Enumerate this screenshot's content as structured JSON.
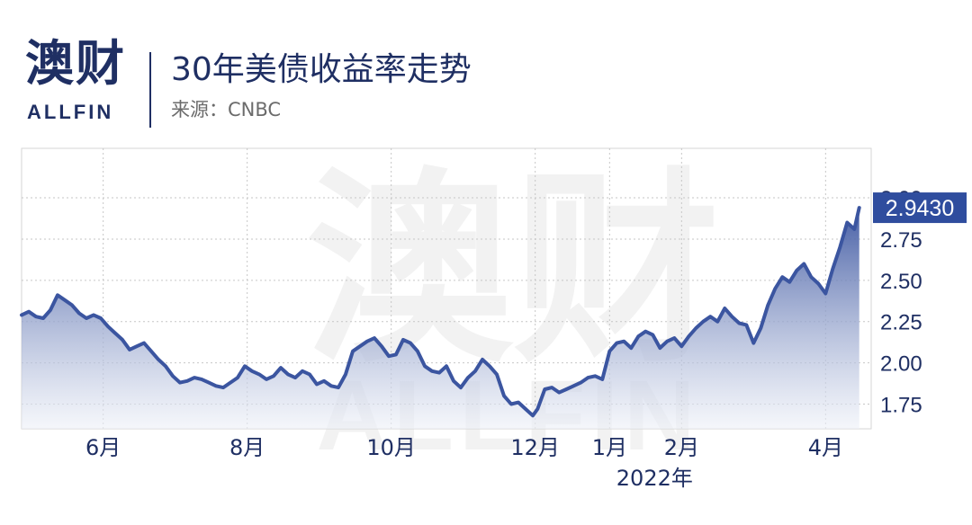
{
  "header": {
    "brand_cn": "澳财",
    "brand_en": "ALLFIN",
    "title": "30年美债收益率走势",
    "source": "来源：CNBC"
  },
  "watermark": {
    "text": "澳财",
    "text_en": "ALLFIN"
  },
  "colors": {
    "line": "#3b55a0",
    "fill_top": "#3b55a0",
    "fill_bottom": "#eef1f8",
    "label_bg": "#2f4d9e",
    "text": "#1f2f63"
  },
  "chart_data": {
    "type": "area",
    "title": "30年美债收益率走势",
    "y_ticks": [
      "1.75",
      "2.00",
      "2.25",
      "2.50",
      "2.75",
      "3.00"
    ],
    "ylim": [
      1.6,
      3.3
    ],
    "x_ticks": [
      {
        "label": "6月",
        "x": 25
      },
      {
        "label": "8月",
        "x": 85
      },
      {
        "label": "10月",
        "x": 145
      },
      {
        "label": "12月",
        "x": 205
      },
      {
        "label": "1月",
        "x": 236
      },
      {
        "label": "2月",
        "x": 266
      },
      {
        "label": "4月",
        "x": 326
      }
    ],
    "x_year_label": "2022年",
    "last_value_label": "2.9430",
    "grid": true,
    "series": [
      {
        "x": [
          -9,
          -6,
          -3,
          0,
          3,
          6,
          9,
          12,
          15,
          18,
          21,
          24,
          27,
          30,
          33,
          36,
          39,
          42,
          45,
          48,
          51,
          54,
          57,
          60,
          63,
          66,
          69,
          72,
          75,
          78,
          81,
          84,
          87,
          90,
          93,
          96,
          99,
          102,
          105,
          108,
          111,
          114,
          117,
          120,
          123,
          126,
          129,
          132,
          135,
          138,
          141,
          144,
          147,
          150,
          153,
          156,
          159,
          162,
          165,
          168,
          171,
          174,
          177,
          180,
          183,
          186,
          189,
          192,
          195,
          198,
          201,
          204,
          206,
          209,
          212,
          215,
          218,
          221,
          224,
          227,
          230,
          233,
          236,
          239,
          242,
          245,
          248,
          251,
          254,
          257,
          260,
          263,
          266,
          269,
          272,
          275,
          278,
          281,
          284,
          287,
          290,
          293,
          296,
          299,
          302,
          305,
          308,
          311,
          314,
          317,
          320,
          323,
          326,
          329,
          332,
          335,
          338,
          340
        ],
        "values": [
          2.29,
          2.31,
          2.28,
          2.27,
          2.32,
          2.41,
          2.38,
          2.35,
          2.3,
          2.27,
          2.29,
          2.27,
          2.22,
          2.18,
          2.14,
          2.08,
          2.1,
          2.12,
          2.07,
          2.02,
          1.98,
          1.92,
          1.88,
          1.89,
          1.91,
          1.9,
          1.88,
          1.86,
          1.85,
          1.88,
          1.91,
          1.98,
          1.95,
          1.93,
          1.9,
          1.92,
          1.97,
          1.93,
          1.91,
          1.95,
          1.93,
          1.87,
          1.89,
          1.86,
          1.85,
          1.93,
          2.07,
          2.1,
          2.13,
          2.15,
          2.1,
          2.04,
          2.05,
          2.14,
          2.12,
          2.07,
          1.98,
          1.95,
          1.94,
          1.98,
          1.89,
          1.85,
          1.91,
          1.95,
          2.02,
          1.98,
          1.93,
          1.8,
          1.75,
          1.76,
          1.72,
          1.68,
          1.72,
          1.84,
          1.85,
          1.82,
          1.84,
          1.86,
          1.88,
          1.91,
          1.92,
          1.9,
          2.07,
          2.12,
          2.13,
          2.09,
          2.16,
          2.19,
          2.17,
          2.09,
          2.13,
          2.15,
          2.1,
          2.16,
          2.21,
          2.25,
          2.28,
          2.25,
          2.33,
          2.28,
          2.24,
          2.23,
          2.12,
          2.21,
          2.35,
          2.45,
          2.52,
          2.49,
          2.56,
          2.6,
          2.52,
          2.48,
          2.42,
          2.57,
          2.7,
          2.85,
          2.81,
          2.94
        ]
      }
    ]
  }
}
